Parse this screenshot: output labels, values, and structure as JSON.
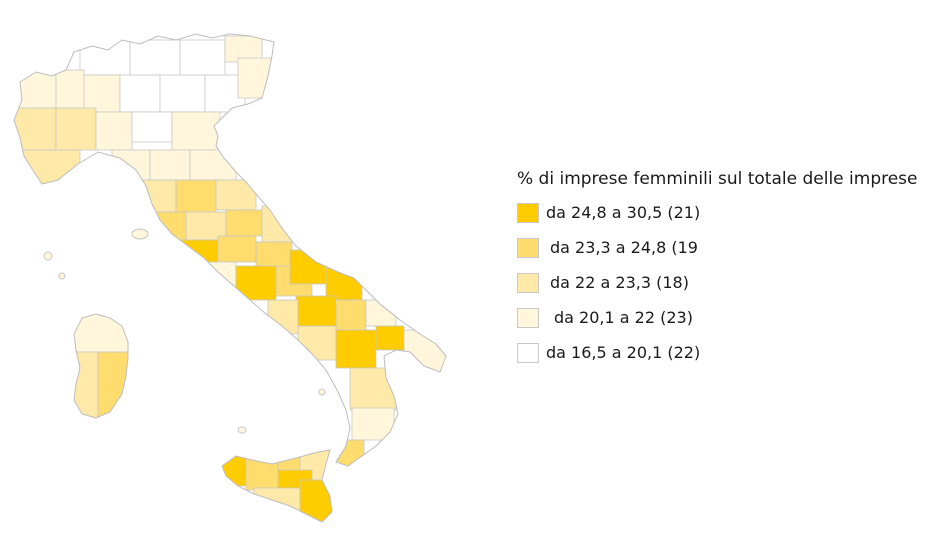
{
  "legend": {
    "title": "% di imprese femminili sul totale delle imprese",
    "classes": [
      {
        "label": "da 24,8 a 30,5 (21)",
        "color": "#ffcc00"
      },
      {
        "label": "da 23,3 a 24,8 (19",
        "color": "#fedc6e"
      },
      {
        "label": "da 22 a 23,3 (18)",
        "color": "#fee9a8"
      },
      {
        "label": "da 20,1 a 22 (23)",
        "color": "#fff6dc"
      },
      {
        "label": "da 16,5 a 20,1 (22)",
        "color": "#ffffff"
      }
    ]
  },
  "map": {
    "border_color": "#c8c8c8"
  }
}
